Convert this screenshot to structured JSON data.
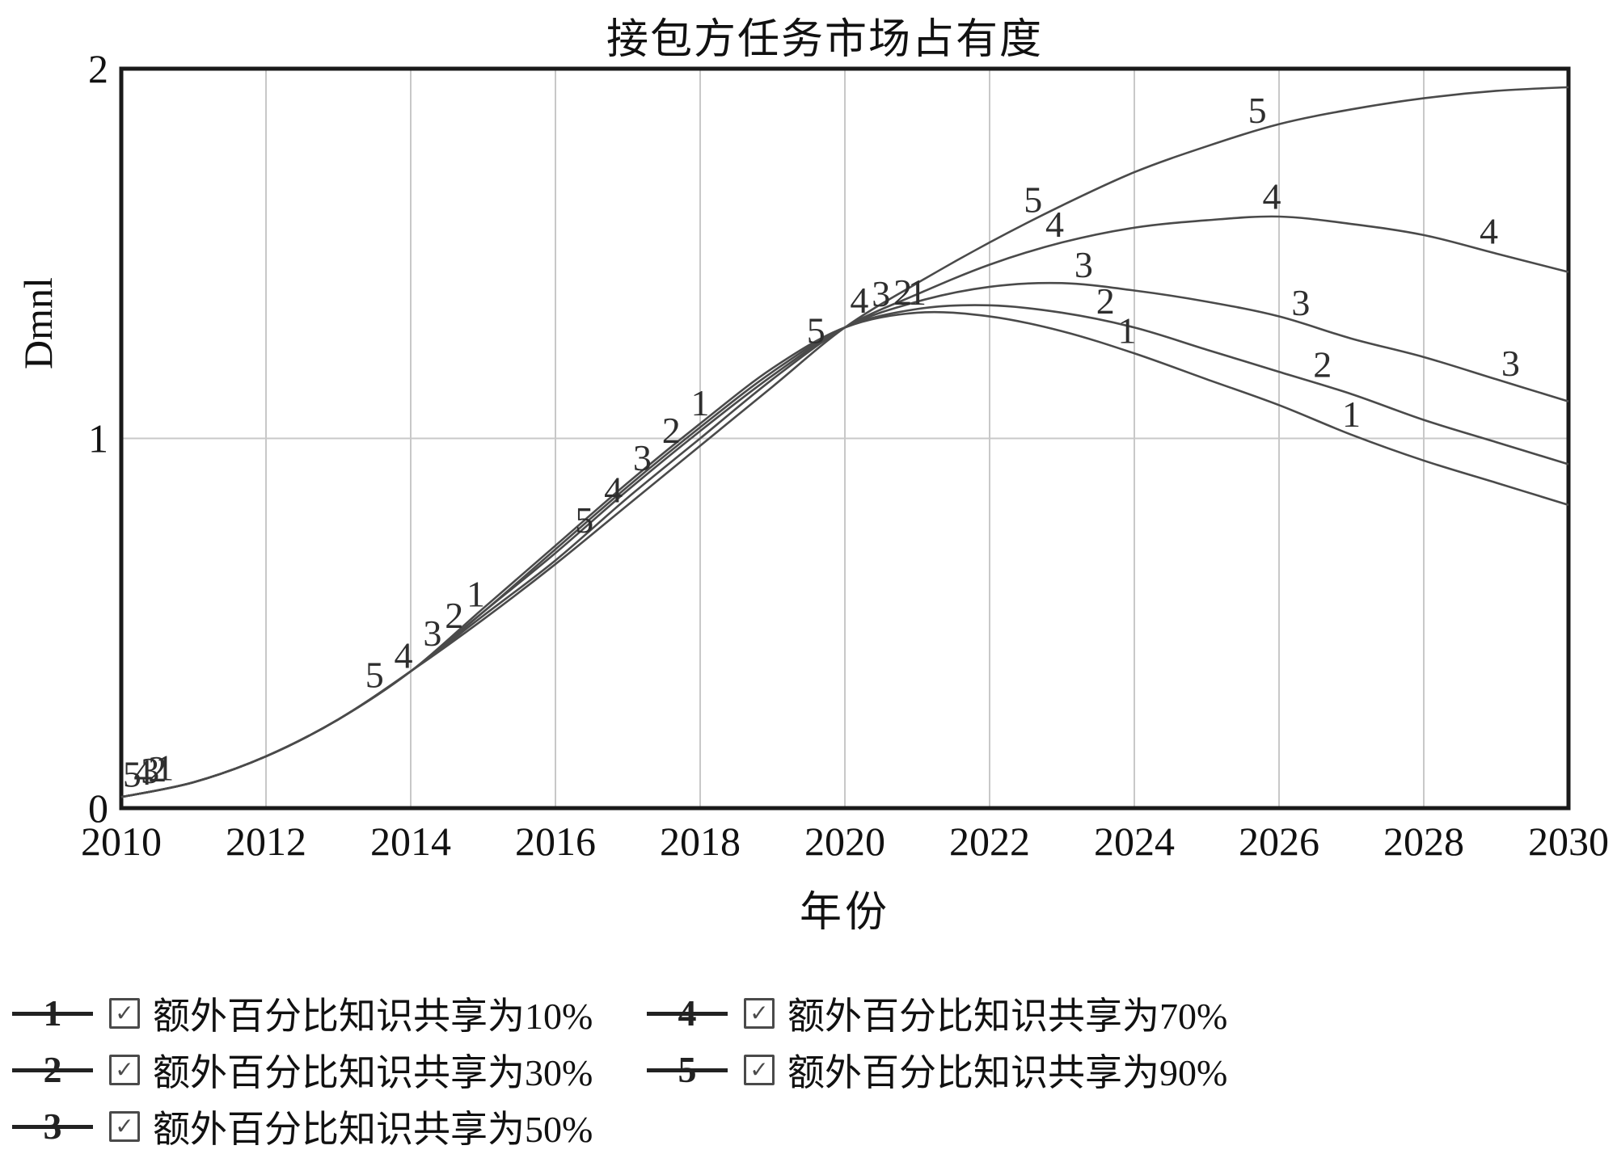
{
  "chart_data": {
    "type": "line",
    "title": "接包方任务市场占有度",
    "xlabel": "年份",
    "ylabel": "Dmnl",
    "xlim": [
      2010,
      2030
    ],
    "ylim": [
      0,
      2
    ],
    "xticks": [
      2010,
      2012,
      2014,
      2016,
      2018,
      2020,
      2022,
      2024,
      2026,
      2028,
      2030
    ],
    "yticks": [
      0,
      1,
      2
    ],
    "grid": true,
    "x": [
      2010,
      2011,
      2012,
      2013,
      2014,
      2015,
      2016,
      2017,
      2018,
      2019,
      2020,
      2021,
      2022,
      2023,
      2024,
      2025,
      2026,
      2027,
      2028,
      2029,
      2030
    ],
    "series": [
      {
        "marker": "1",
        "name": "额外百分比知识共享为10%",
        "values": [
          0.03,
          0.07,
          0.14,
          0.24,
          0.37,
          0.54,
          0.71,
          0.88,
          1.04,
          1.19,
          1.3,
          1.34,
          1.33,
          1.29,
          1.23,
          1.16,
          1.09,
          1.01,
          0.94,
          0.88,
          0.82
        ],
        "label_x": [
          2010.6,
          2014.9,
          2018.0,
          2021.0,
          2023.9,
          2027.0
        ]
      },
      {
        "marker": "2",
        "name": "额外百分比知识共享为30%",
        "values": [
          0.03,
          0.07,
          0.14,
          0.24,
          0.37,
          0.53,
          0.7,
          0.87,
          1.03,
          1.18,
          1.3,
          1.35,
          1.36,
          1.34,
          1.3,
          1.24,
          1.18,
          1.12,
          1.05,
          0.99,
          0.93
        ],
        "label_x": [
          2010.5,
          2014.6,
          2017.6,
          2020.8,
          2023.6,
          2026.6
        ]
      },
      {
        "marker": "3",
        "name": "额外百分比知识共享为50%",
        "values": [
          0.03,
          0.07,
          0.14,
          0.24,
          0.37,
          0.53,
          0.69,
          0.86,
          1.02,
          1.17,
          1.3,
          1.37,
          1.41,
          1.42,
          1.4,
          1.37,
          1.33,
          1.27,
          1.22,
          1.16,
          1.1
        ],
        "label_x": [
          2010.4,
          2014.3,
          2017.2,
          2020.5,
          2023.3,
          2026.3,
          2029.2
        ]
      },
      {
        "marker": "4",
        "name": "额外百分比知识共享为70%",
        "values": [
          0.03,
          0.07,
          0.14,
          0.24,
          0.37,
          0.52,
          0.67,
          0.84,
          1.0,
          1.16,
          1.3,
          1.39,
          1.47,
          1.53,
          1.57,
          1.59,
          1.6,
          1.58,
          1.55,
          1.5,
          1.45
        ],
        "label_x": [
          2010.3,
          2013.9,
          2016.8,
          2020.2,
          2022.9,
          2025.9,
          2028.9
        ]
      },
      {
        "marker": "5",
        "name": "额外百分比知识共享为90%",
        "values": [
          0.03,
          0.07,
          0.14,
          0.24,
          0.37,
          0.51,
          0.66,
          0.82,
          0.98,
          1.14,
          1.3,
          1.42,
          1.53,
          1.63,
          1.72,
          1.79,
          1.85,
          1.89,
          1.92,
          1.94,
          1.95
        ],
        "label_x": [
          2010.15,
          2013.5,
          2016.4,
          2019.6,
          2022.6,
          2025.7
        ]
      }
    ],
    "colors": {
      "line": "#4a4a4a",
      "grid": "#c8c8c8",
      "border": "#1a1a1a",
      "text": "#111111"
    },
    "legend_position": "bottom"
  },
  "legend": {
    "check_glyph": "✓",
    "checked": [
      true,
      true,
      true,
      true,
      true
    ]
  }
}
